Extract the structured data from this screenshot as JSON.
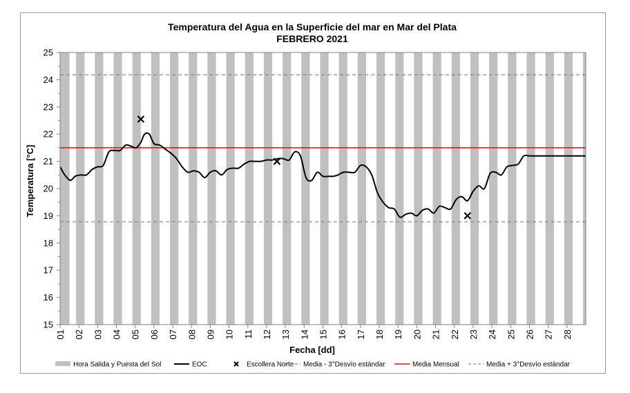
{
  "chart_data": {
    "type": "line",
    "title": "Temperatura del Agua en la Superficie del mar en Mar del Plata",
    "subtitle": "FEBRERO 2021",
    "xlabel": "Fecha [dd]",
    "ylabel": "Temperatura [°C]",
    "ylim": [
      15,
      25
    ],
    "xlim": [
      1,
      29
    ],
    "yticks": [
      "15",
      "16",
      "17",
      "18",
      "19",
      "20",
      "21",
      "22",
      "23",
      "24",
      "25"
    ],
    "xticks": [
      "01",
      "02",
      "03",
      "04",
      "05",
      "06",
      "07",
      "08",
      "09",
      "10",
      "11",
      "12",
      "13",
      "14",
      "15",
      "16",
      "17",
      "18",
      "19",
      "20",
      "21",
      "22",
      "23",
      "24",
      "25",
      "26",
      "27",
      "28"
    ],
    "grid": false,
    "legend_position": "bottom",
    "legend": [
      {
        "label": "Hora Salida y Puesta del Sol",
        "kind": "bar"
      },
      {
        "label": "EOC",
        "kind": "line"
      },
      {
        "label": "Escollera Norte",
        "kind": "marker"
      },
      {
        "label": "Media - 3°Desvío estándar",
        "kind": "dashed"
      },
      {
        "label": "Media Mensual",
        "kind": "line-red"
      },
      {
        "label": "Media + 3°Desvío estándar",
        "kind": "dashed"
      }
    ],
    "night_bands": [
      [
        1.0,
        1.5
      ],
      [
        1.85,
        2.3
      ],
      [
        2.85,
        3.3
      ],
      [
        3.85,
        4.3
      ],
      [
        4.85,
        5.3
      ],
      [
        5.85,
        6.3
      ],
      [
        6.85,
        7.3
      ],
      [
        7.85,
        8.3
      ],
      [
        8.85,
        9.3
      ],
      [
        9.85,
        10.3
      ],
      [
        10.85,
        11.3
      ],
      [
        11.85,
        12.3
      ],
      [
        12.85,
        13.3
      ],
      [
        13.85,
        14.3
      ],
      [
        14.85,
        15.3
      ],
      [
        15.85,
        16.3
      ],
      [
        16.85,
        17.3
      ],
      [
        17.85,
        18.3
      ],
      [
        18.85,
        19.3
      ],
      [
        19.85,
        20.3
      ],
      [
        20.85,
        21.3
      ],
      [
        21.85,
        22.3
      ],
      [
        22.85,
        23.3
      ],
      [
        23.85,
        24.3
      ],
      [
        24.85,
        25.3
      ],
      [
        25.85,
        26.3
      ],
      [
        26.85,
        27.3
      ],
      [
        27.85,
        28.3
      ],
      [
        28.85,
        29.0
      ]
    ],
    "series": [
      {
        "name": "EOC",
        "color": "#000000",
        "x": [
          1.0,
          1.25,
          1.55,
          1.8,
          2.1,
          2.4,
          2.7,
          3.0,
          3.3,
          3.6,
          3.9,
          4.2,
          4.5,
          4.8,
          5.05,
          5.3,
          5.5,
          5.75,
          6.0,
          6.3,
          6.6,
          6.9,
          7.2,
          7.5,
          7.8,
          8.1,
          8.4,
          8.7,
          9.0,
          9.3,
          9.6,
          9.9,
          10.2,
          10.5,
          10.8,
          11.1,
          11.4,
          11.7,
          12.0,
          12.3,
          12.6,
          12.9,
          13.2,
          13.5,
          13.8,
          14.1,
          14.4,
          14.7,
          15.0,
          15.3,
          15.55,
          15.8,
          16.1,
          16.4,
          16.7,
          17.0,
          17.3,
          17.6,
          17.9,
          18.2,
          18.5,
          18.8,
          19.1,
          19.4,
          19.7,
          20.0,
          20.3,
          20.6,
          20.9,
          21.2,
          21.5,
          21.8,
          22.1,
          22.4,
          22.7,
          23.0,
          23.3,
          23.6,
          23.9,
          24.2,
          24.5,
          24.8,
          25.1,
          25.4,
          25.7,
          26.0,
          26.3,
          26.6,
          26.9,
          27.2,
          27.5,
          27.8,
          28.1,
          28.4,
          28.7,
          29.0
        ],
        "y": [
          20.8,
          20.5,
          20.3,
          20.45,
          20.5,
          20.5,
          20.7,
          20.8,
          20.85,
          21.35,
          21.4,
          21.4,
          21.6,
          21.55,
          21.5,
          21.7,
          22.0,
          22.0,
          21.65,
          21.6,
          21.45,
          21.3,
          21.1,
          20.8,
          20.6,
          20.65,
          20.6,
          20.4,
          20.6,
          20.65,
          20.5,
          20.7,
          20.75,
          20.75,
          20.9,
          21.0,
          21.0,
          21.0,
          21.05,
          21.05,
          21.1,
          21.1,
          21.05,
          21.35,
          21.2,
          20.4,
          20.3,
          20.6,
          20.45,
          20.45,
          20.45,
          20.5,
          20.6,
          20.6,
          20.6,
          20.85,
          20.8,
          20.5,
          19.85,
          19.5,
          19.3,
          19.25,
          18.95,
          19.05,
          19.1,
          19.0,
          19.2,
          19.25,
          19.1,
          19.35,
          19.3,
          19.25,
          19.6,
          19.7,
          19.55,
          19.9,
          20.1,
          20.0,
          20.55,
          20.6,
          20.5,
          20.8,
          20.85,
          20.9,
          21.2,
          21.2,
          21.2,
          21.2,
          21.2,
          21.2,
          21.2,
          21.2,
          21.2,
          21.2,
          21.2,
          21.2
        ]
      },
      {
        "name": "Escollera Norte",
        "color": "#000000",
        "x": [
          5.3,
          12.55,
          22.7
        ],
        "y": [
          22.55,
          21.0,
          19.0
        ]
      },
      {
        "name": "Media Mensual",
        "color": "#ff0000",
        "value": 21.5
      },
      {
        "name": "Media - 3°Desvío estándar",
        "color": "#808080",
        "value": 18.78
      },
      {
        "name": "Media + 3°Desvío estándar",
        "color": "#808080",
        "value": 24.18
      }
    ]
  }
}
